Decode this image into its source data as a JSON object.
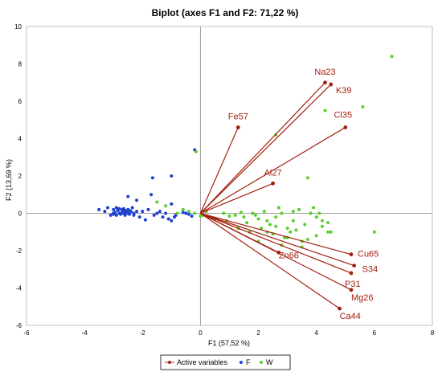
{
  "chart_data": {
    "type": "scatter",
    "title": "Biplot (axes F1 and F2: 71,22 %)",
    "xlabel": "F1 (57,52 %)",
    "ylabel": "F2 (13,69 %)",
    "xlim": [
      -6,
      8
    ],
    "ylim": [
      -6,
      10
    ],
    "x_ticks": [
      -6,
      -4,
      -2,
      0,
      2,
      4,
      6,
      8
    ],
    "y_ticks": [
      -6,
      -4,
      -2,
      0,
      2,
      4,
      6,
      8,
      10
    ],
    "x_tick_labels": [
      "-6",
      "-4",
      "-2",
      "0",
      "2",
      "4",
      "6",
      "8"
    ],
    "y_tick_labels": [
      "-6",
      "-4",
      "-2",
      "0",
      "2",
      "4",
      "6",
      "8",
      "10"
    ],
    "colors": {
      "active": "#a3200f",
      "F": "#1f3fd0",
      "W": "#58d02a"
    },
    "legend": {
      "placement": "bottom",
      "entries": [
        "Active variables",
        "F",
        "W"
      ]
    },
    "active_variables": [
      {
        "name": "Na23",
        "x": 4.3,
        "y": 7.0
      },
      {
        "name": "K39",
        "x": 4.5,
        "y": 6.9
      },
      {
        "name": "Cl35",
        "x": 5.0,
        "y": 4.6
      },
      {
        "name": "Fe57",
        "x": 1.3,
        "y": 4.6
      },
      {
        "name": "Al27",
        "x": 2.5,
        "y": 1.6
      },
      {
        "name": "Zn66",
        "x": 2.7,
        "y": -2.1
      },
      {
        "name": "Cu65",
        "x": 5.2,
        "y": -2.2
      },
      {
        "name": "S34",
        "x": 5.3,
        "y": -2.8
      },
      {
        "name": "P31",
        "x": 5.2,
        "y": -3.2
      },
      {
        "name": "Mg26",
        "x": 5.2,
        "y": -4.1
      },
      {
        "name": "Ca44",
        "x": 4.8,
        "y": -5.1
      }
    ],
    "series": [
      {
        "name": "F",
        "points": [
          [
            -3.5,
            0.2
          ],
          [
            -3.3,
            0.1
          ],
          [
            -3.2,
            0.3
          ],
          [
            -3.1,
            -0.1
          ],
          [
            -3.0,
            0.2
          ],
          [
            -3.0,
            0.0
          ],
          [
            -2.9,
            0.3
          ],
          [
            -2.9,
            -0.1
          ],
          [
            -2.85,
            0.15
          ],
          [
            -2.8,
            0.0
          ],
          [
            -2.8,
            0.25
          ],
          [
            -2.75,
            -0.05
          ],
          [
            -2.7,
            0.1
          ],
          [
            -2.7,
            0.2
          ],
          [
            -2.65,
            0.0
          ],
          [
            -2.6,
            0.15
          ],
          [
            -2.6,
            -0.1
          ],
          [
            -2.55,
            0.05
          ],
          [
            -2.5,
            0.0
          ],
          [
            -2.5,
            0.2
          ],
          [
            -2.45,
            -0.05
          ],
          [
            -2.4,
            0.1
          ],
          [
            -2.35,
            0.3
          ],
          [
            -2.3,
            -0.1
          ],
          [
            -2.3,
            0.0
          ],
          [
            -2.2,
            0.1
          ],
          [
            -2.2,
            0.7
          ],
          [
            -2.1,
            -0.2
          ],
          [
            -2.0,
            0.1
          ],
          [
            -1.9,
            -0.35
          ],
          [
            -1.8,
            0.2
          ],
          [
            -1.7,
            1.0
          ],
          [
            -1.6,
            -0.1
          ],
          [
            -1.5,
            0.0
          ],
          [
            -1.4,
            0.1
          ],
          [
            -1.3,
            -0.2
          ],
          [
            -1.2,
            0.0
          ],
          [
            -1.1,
            -0.3
          ],
          [
            -1.0,
            -0.4
          ],
          [
            -1.0,
            0.5
          ],
          [
            -0.9,
            -0.2
          ],
          [
            -0.85,
            -0.1
          ],
          [
            -0.6,
            0.05
          ],
          [
            -0.5,
            0.0
          ],
          [
            -0.4,
            -0.05
          ],
          [
            -0.2,
            3.4
          ],
          [
            -2.5,
            0.9
          ],
          [
            -1.0,
            2.0
          ],
          [
            -1.65,
            1.9
          ],
          [
            -0.3,
            -0.15
          ],
          [
            -3.0,
            -0.05
          ],
          [
            -2.95,
            0.05
          ],
          [
            -2.65,
            0.25
          ],
          [
            -2.45,
            0.15
          ]
        ]
      },
      {
        "name": "W",
        "points": [
          [
            -0.15,
            3.3
          ],
          [
            6.6,
            8.4
          ],
          [
            5.6,
            5.7
          ],
          [
            4.3,
            5.5
          ],
          [
            2.6,
            4.2
          ],
          [
            3.7,
            1.9
          ],
          [
            6.0,
            -1.0
          ],
          [
            2.0,
            -1.5
          ],
          [
            2.3,
            -1.0
          ],
          [
            3.0,
            -1.3
          ],
          [
            3.5,
            -1.5
          ],
          [
            4.0,
            -1.2
          ],
          [
            4.4,
            -1.0
          ],
          [
            1.6,
            -0.5
          ],
          [
            1.8,
            0.0
          ],
          [
            2.0,
            -0.3
          ],
          [
            2.2,
            0.1
          ],
          [
            2.4,
            -0.6
          ],
          [
            2.6,
            -0.2
          ],
          [
            2.8,
            0.0
          ],
          [
            3.0,
            -0.8
          ],
          [
            3.2,
            -0.4
          ],
          [
            3.4,
            0.2
          ],
          [
            3.6,
            -0.6
          ],
          [
            3.8,
            0.0
          ],
          [
            4.0,
            -0.2
          ],
          [
            4.2,
            -0.4
          ],
          [
            4.4,
            -0.5
          ],
          [
            1.5,
            -0.2
          ],
          [
            1.2,
            -0.1
          ],
          [
            0.8,
            0.0
          ],
          [
            0.5,
            -0.3
          ],
          [
            0.3,
            -0.2
          ],
          [
            0.1,
            -0.1
          ],
          [
            -0.2,
            0.0
          ],
          [
            -0.4,
            0.1
          ],
          [
            -0.6,
            0.2
          ],
          [
            -0.8,
            0.0
          ],
          [
            -1.2,
            0.4
          ],
          [
            -1.5,
            0.6
          ],
          [
            1.3,
            -0.8
          ],
          [
            1.7,
            -1.0
          ],
          [
            2.1,
            -0.8
          ],
          [
            2.5,
            -1.1
          ],
          [
            2.9,
            -1.3
          ],
          [
            3.1,
            -1.0
          ],
          [
            3.3,
            -0.9
          ],
          [
            3.7,
            -1.4
          ],
          [
            4.5,
            -1.0
          ],
          [
            1.9,
            -0.1
          ],
          [
            2.7,
            0.3
          ],
          [
            3.9,
            0.3
          ],
          [
            4.1,
            0.0
          ],
          [
            3.2,
            0.1
          ],
          [
            2.3,
            -0.4
          ],
          [
            1.4,
            0.05
          ],
          [
            0.9,
            -0.4
          ],
          [
            2.8,
            -1.7
          ],
          [
            3.5,
            -1.8
          ],
          [
            4.2,
            -0.7
          ],
          [
            0.0,
            -0.15
          ],
          [
            0.2,
            0.1
          ],
          [
            1.0,
            -0.15
          ],
          [
            2.6,
            -0.7
          ]
        ]
      }
    ]
  }
}
